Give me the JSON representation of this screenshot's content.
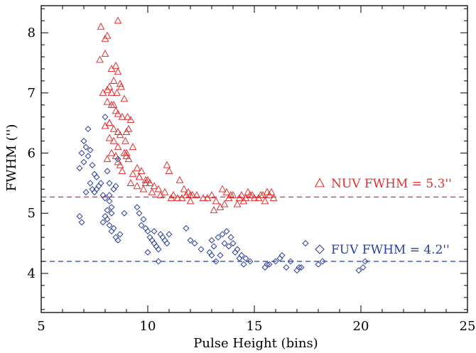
{
  "chart_data": {
    "type": "scatter",
    "xlabel": "Pulse Height (bins)",
    "ylabel": "FWHM ('')",
    "xlim": [
      5,
      25
    ],
    "ylim": [
      3.35,
      8.45
    ],
    "x_ticks": [
      5,
      10,
      15,
      20,
      25
    ],
    "y_ticks": [
      4,
      5,
      6,
      7,
      8
    ],
    "grid": false,
    "series": [
      {
        "name": "NUV FWHM = 5.3''",
        "marker": "triangle",
        "color": "#e03030",
        "reference_line": 5.27,
        "x": [
          7.8,
          8.6,
          8.1,
          8.0,
          7.75,
          8.0,
          8.3,
          8.5,
          8.6,
          8.4,
          8.7,
          8.2,
          7.9,
          8.1,
          8.3,
          8.55,
          8.75,
          8.9,
          8.1,
          8.3,
          8.5,
          8.6,
          8.8,
          8.2,
          8.0,
          8.4,
          8.6,
          9.0,
          9.1,
          8.7,
          8.95,
          9.05,
          9.2,
          8.2,
          8.4,
          8.6,
          9.0,
          9.3,
          8.3,
          8.1,
          8.5,
          8.4,
          8.2,
          8.9,
          9.0,
          9.1,
          8.6,
          8.7,
          8.8,
          9.5,
          9.7,
          9.3,
          9.6,
          9.9,
          9.2,
          9.5,
          9.8,
          9.6,
          10.0,
          9.9,
          10.1,
          10.3,
          10.5,
          10.2,
          10.9,
          11.0,
          11.5,
          10.6,
          10.8,
          11.2,
          11.4,
          11.1,
          11.9,
          11.7,
          11.8,
          12.0,
          11.6,
          12.3,
          12.6,
          12.8,
          12.1,
          12.0,
          13.0,
          13.2,
          13.5,
          13.7,
          13.9,
          13.1,
          13.4,
          13.6,
          13.8,
          14.0,
          14.3,
          14.5,
          14.2,
          14.4,
          14.6,
          14.8,
          15.0,
          14.7,
          14.9,
          15.2,
          15.4,
          15.6,
          15.5,
          15.7,
          15.8,
          15.3,
          15.9
        ],
        "y": [
          8.1,
          8.2,
          7.95,
          7.9,
          7.55,
          7.65,
          7.4,
          7.45,
          7.35,
          7.2,
          7.15,
          7.1,
          7.0,
          7.05,
          7.0,
          7.0,
          7.1,
          6.9,
          6.85,
          6.8,
          6.7,
          6.65,
          6.6,
          6.5,
          6.45,
          6.4,
          6.35,
          6.35,
          6.4,
          6.3,
          6.2,
          6.6,
          6.55,
          6.25,
          6.2,
          6.1,
          6.0,
          6.1,
          6.0,
          5.9,
          5.95,
          6.8,
          6.5,
          6.0,
          5.95,
          5.9,
          5.85,
          5.8,
          5.7,
          5.75,
          5.7,
          5.65,
          5.6,
          5.55,
          5.5,
          5.45,
          5.4,
          5.6,
          5.55,
          5.5,
          5.5,
          5.45,
          5.4,
          5.35,
          5.8,
          5.7,
          5.55,
          5.3,
          5.35,
          5.3,
          5.25,
          5.25,
          5.35,
          5.4,
          5.3,
          5.3,
          5.25,
          5.3,
          5.25,
          5.25,
          5.3,
          5.2,
          5.3,
          5.2,
          5.4,
          5.35,
          5.3,
          5.05,
          5.1,
          5.15,
          5.25,
          5.3,
          5.25,
          5.2,
          5.15,
          5.3,
          5.25,
          5.3,
          5.25,
          5.35,
          5.3,
          5.25,
          5.3,
          5.35,
          5.2,
          5.3,
          5.35,
          5.3,
          5.25
        ]
      },
      {
        "name": "FUV FWHM = 4.2''",
        "marker": "diamond",
        "color": "#2b3f9a",
        "reference_line": 4.2,
        "x": [
          7.2,
          7.0,
          6.9,
          7.1,
          7.3,
          7.2,
          7.0,
          6.8,
          7.4,
          7.5,
          7.6,
          7.3,
          7.1,
          7.4,
          7.7,
          7.8,
          7.6,
          7.5,
          7.9,
          8.0,
          8.2,
          8.1,
          8.3,
          8.0,
          7.9,
          8.1,
          8.2,
          8.4,
          8.3,
          8.5,
          8.6,
          8.2,
          8.7,
          8.4,
          8.9,
          8.0,
          8.1,
          8.2,
          8.3,
          8.5,
          8.6,
          6.8,
          6.9,
          9.5,
          9.6,
          9.8,
          9.7,
          9.9,
          10.0,
          10.1,
          10.2,
          10.3,
          10.4,
          10.5,
          10.6,
          10.7,
          10.8,
          10.9,
          10.5,
          10.0,
          10.3,
          11.0,
          11.8,
          12.0,
          12.2,
          12.5,
          12.9,
          13.0,
          13.1,
          13.3,
          13.0,
          13.5,
          13.7,
          13.9,
          14.0,
          14.2,
          14.4,
          14.6,
          14.8,
          13.6,
          13.8,
          14.1,
          14.3,
          14.5,
          13.2,
          13.4,
          15.5,
          15.7,
          16.0,
          16.2,
          16.5,
          17.0,
          17.2,
          17.4,
          18.0,
          18.2,
          19.9,
          20.1,
          20.2,
          15.6,
          16.3,
          16.7,
          17.1
        ],
        "y": [
          6.4,
          6.2,
          6.0,
          6.1,
          6.05,
          5.95,
          5.85,
          5.75,
          5.8,
          5.65,
          5.6,
          5.5,
          5.35,
          5.4,
          5.45,
          5.5,
          5.4,
          5.35,
          5.3,
          5.25,
          5.2,
          5.05,
          5.0,
          4.95,
          4.85,
          4.9,
          4.8,
          4.75,
          4.7,
          4.6,
          4.55,
          5.5,
          4.65,
          5.4,
          5.0,
          6.6,
          5.7,
          5.3,
          5.1,
          5.45,
          5.9,
          4.95,
          4.85,
          5.1,
          5.0,
          4.9,
          4.8,
          4.75,
          4.7,
          4.6,
          4.55,
          4.5,
          4.45,
          4.4,
          4.65,
          4.6,
          4.55,
          4.5,
          4.2,
          4.35,
          4.7,
          4.65,
          4.75,
          4.55,
          4.5,
          4.4,
          4.35,
          4.3,
          4.45,
          4.6,
          4.55,
          4.65,
          4.7,
          4.6,
          4.5,
          4.4,
          4.3,
          4.25,
          4.2,
          4.5,
          4.45,
          4.35,
          4.25,
          4.15,
          4.2,
          4.3,
          4.1,
          4.15,
          4.2,
          4.25,
          4.1,
          4.05,
          4.1,
          4.5,
          4.15,
          4.2,
          4.05,
          4.1,
          4.2,
          4.15,
          4.3,
          4.2,
          4.1
        ]
      }
    ]
  },
  "legend": {
    "nuv": "NUV FWHM = 5.3''",
    "fuv": "FUV FWHM = 4.2''"
  }
}
